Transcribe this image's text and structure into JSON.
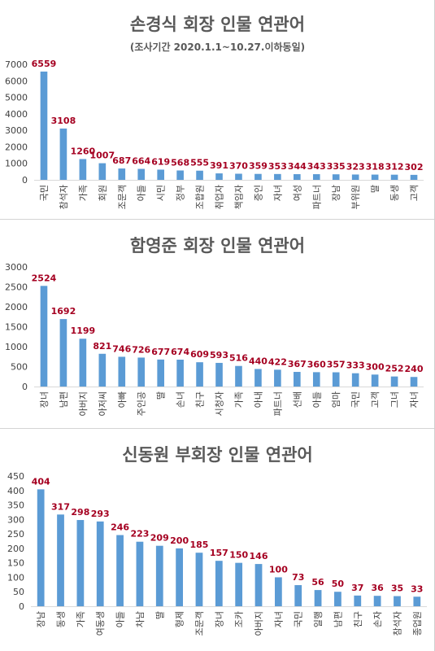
{
  "chart_data": [
    {
      "type": "bar",
      "title": "손경식 회장 인물 연관어",
      "subtitle": "(조사기간 2020.1.1~10.27.이하동일)",
      "categories": [
        "국민",
        "참석자",
        "가족",
        "회원",
        "조문객",
        "아들",
        "시민",
        "정부",
        "조합원",
        "취업자",
        "책임자",
        "증인",
        "자녀",
        "여성",
        "파트너",
        "장남",
        "부위원",
        "딸",
        "동생",
        "고객"
      ],
      "values": [
        6559,
        3108,
        1260,
        1007,
        687,
        664,
        619,
        568,
        555,
        391,
        370,
        359,
        353,
        344,
        343,
        335,
        323,
        318,
        312,
        302
      ],
      "ylim": [
        0,
        7000
      ],
      "yticks": [
        0,
        1000,
        2000,
        3000,
        4000,
        5000,
        6000,
        7000
      ],
      "grid": false
    },
    {
      "type": "bar",
      "title": "함영준 회장 인물 연관어",
      "categories": [
        "장녀",
        "남편",
        "아버지",
        "아저씨",
        "아빠",
        "주인공",
        "딸",
        "손녀",
        "친구",
        "시청자",
        "가족",
        "아내",
        "파트너",
        "선배",
        "아들",
        "엄마",
        "국민",
        "고객",
        "그녀",
        "자녀"
      ],
      "values": [
        2524,
        1692,
        1199,
        821,
        746,
        726,
        677,
        674,
        609,
        593,
        516,
        440,
        422,
        367,
        360,
        357,
        333,
        300,
        252,
        240
      ],
      "ylim": [
        0,
        3000
      ],
      "yticks": [
        0,
        500,
        1000,
        1500,
        2000,
        2500,
        3000
      ],
      "grid": false
    },
    {
      "type": "bar",
      "title": "신동원 부회장 인물 연관어",
      "categories": [
        "장남",
        "동생",
        "가족",
        "여동생",
        "아들",
        "차남",
        "딸",
        "형제",
        "조문객",
        "장녀",
        "조카",
        "아버지",
        "자녀",
        "국민",
        "일행",
        "남편",
        "친구",
        "손자",
        "참석자",
        "종업원"
      ],
      "values": [
        404,
        317,
        298,
        293,
        246,
        223,
        209,
        200,
        185,
        157,
        150,
        146,
        100,
        73,
        56,
        50,
        37,
        36,
        35,
        33
      ],
      "ylim": [
        0,
        450
      ],
      "yticks": [
        0,
        50,
        100,
        150,
        200,
        250,
        300,
        350,
        400,
        450
      ],
      "grid": false
    }
  ],
  "colors": {
    "bar": "#5b9bd5",
    "value_label": "#a50021",
    "title": "#595959",
    "axis_text": "#404040",
    "axis_line": "#d9d9d9"
  }
}
